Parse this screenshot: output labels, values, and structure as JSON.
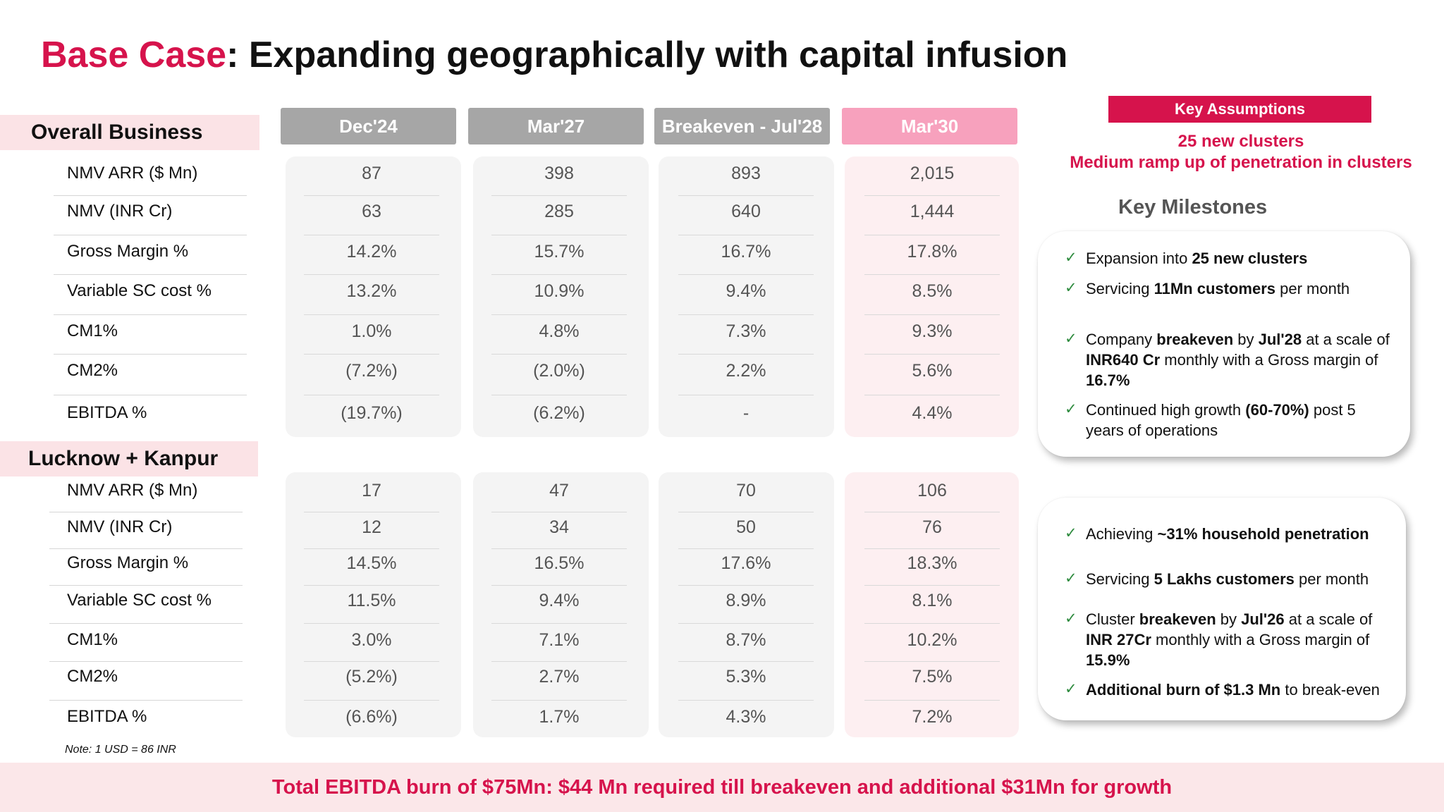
{
  "title": {
    "accent": "Base Case",
    "rest": ": Expanding geographically with capital infusion"
  },
  "columns": [
    "Dec'24",
    "Mar'27",
    "Breakeven - Jul'28",
    "Mar'30"
  ],
  "sections": [
    {
      "name": "Overall Business",
      "rows": [
        {
          "label": "NMV ARR ($ Mn)",
          "values": [
            "87",
            "398",
            "893",
            "2,015"
          ]
        },
        {
          "label": "NMV (INR Cr)",
          "values": [
            "63",
            "285",
            "640",
            "1,444"
          ]
        },
        {
          "label": "Gross Margin %",
          "values": [
            "14.2%",
            "15.7%",
            "16.7%",
            "17.8%"
          ]
        },
        {
          "label": "Variable SC cost %",
          "values": [
            "13.2%",
            "10.9%",
            "9.4%",
            "8.5%"
          ]
        },
        {
          "label": "CM1%",
          "values": [
            "1.0%",
            "4.8%",
            "7.3%",
            "9.3%"
          ]
        },
        {
          "label": "CM2%",
          "values": [
            "(7.2%)",
            "(2.0%)",
            "2.2%",
            "5.6%"
          ]
        },
        {
          "label": "EBITDA %",
          "values": [
            "(19.7%)",
            "(6.2%)",
            "-",
            "4.4%"
          ]
        }
      ]
    },
    {
      "name": "Lucknow + Kanpur",
      "rows": [
        {
          "label": "NMV ARR ($ Mn)",
          "values": [
            "17",
            "47",
            "70",
            "106"
          ]
        },
        {
          "label": "NMV (INR Cr)",
          "values": [
            "12",
            "34",
            "50",
            "76"
          ]
        },
        {
          "label": "Gross Margin %",
          "values": [
            "14.5%",
            "16.5%",
            "17.6%",
            "18.3%"
          ]
        },
        {
          "label": "Variable SC cost %",
          "values": [
            "11.5%",
            "9.4%",
            "8.9%",
            "8.1%"
          ]
        },
        {
          "label": "CM1%",
          "values": [
            "3.0%",
            "7.1%",
            "8.7%",
            "10.2%"
          ]
        },
        {
          "label": "CM2%",
          "values": [
            "(5.2%)",
            "2.7%",
            "5.3%",
            "7.5%"
          ]
        },
        {
          "label": "EBITDA %",
          "values": [
            "(6.6%)",
            "1.7%",
            "4.3%",
            "7.2%"
          ]
        }
      ]
    }
  ],
  "key_assumptions": {
    "label": "Key Assumptions",
    "lines": [
      "25 new clusters",
      "Medium ramp up of penetration in clusters"
    ]
  },
  "key_milestones": {
    "title": "Key Milestones",
    "overall": [
      [
        {
          "t": "Expansion into "
        },
        {
          "t": "25 new clusters",
          "b": true
        }
      ],
      [
        {
          "t": "Servicing "
        },
        {
          "t": "11Mn customers",
          "b": true
        },
        {
          "t": " per month"
        }
      ],
      [
        {
          "t": "Company "
        },
        {
          "t": "breakeven",
          "b": true
        },
        {
          "t": " by "
        },
        {
          "t": "Jul'28",
          "b": true
        },
        {
          "t": " at a scale of "
        },
        {
          "t": "INR640 Cr",
          "b": true
        },
        {
          "t": " monthly with a Gross margin of "
        },
        {
          "t": "16.7%",
          "b": true
        }
      ],
      [
        {
          "t": "Continued high growth "
        },
        {
          "t": "(60-70%)",
          "b": true
        },
        {
          "t": " post 5 years of operations"
        }
      ]
    ],
    "cluster": [
      [
        {
          "t": "Achieving "
        },
        {
          "t": "~31% household penetration",
          "b": true
        }
      ],
      [
        {
          "t": "Servicing "
        },
        {
          "t": "5 Lakhs customers",
          "b": true
        },
        {
          "t": " per month"
        }
      ],
      [
        {
          "t": "Cluster "
        },
        {
          "t": "breakeven",
          "b": true
        },
        {
          "t": " by "
        },
        {
          "t": "Jul'26",
          "b": true
        },
        {
          "t": " at a scale of "
        },
        {
          "t": "INR 27Cr",
          "b": true
        },
        {
          "t": " monthly with a Gross margin of "
        },
        {
          "t": "15.9%",
          "b": true
        }
      ],
      [
        {
          "t": "Additional burn of $1.3 Mn",
          "b": true
        },
        {
          "t": " to break-even"
        }
      ]
    ]
  },
  "note": "Note: 1 USD = 86 INR",
  "footer": "Total EBITDA burn of $75Mn: $44 Mn required till breakeven and additional $31Mn for growth",
  "colors": {
    "accent": "#d6134c",
    "header_grey": "#a6a6a6",
    "header_pink": "#f7a1bd",
    "panel_grey": "#f4f4f4",
    "panel_pink": "#fdeff1",
    "section_bg": "#fbe3e6",
    "check": "#2e8b3e"
  }
}
